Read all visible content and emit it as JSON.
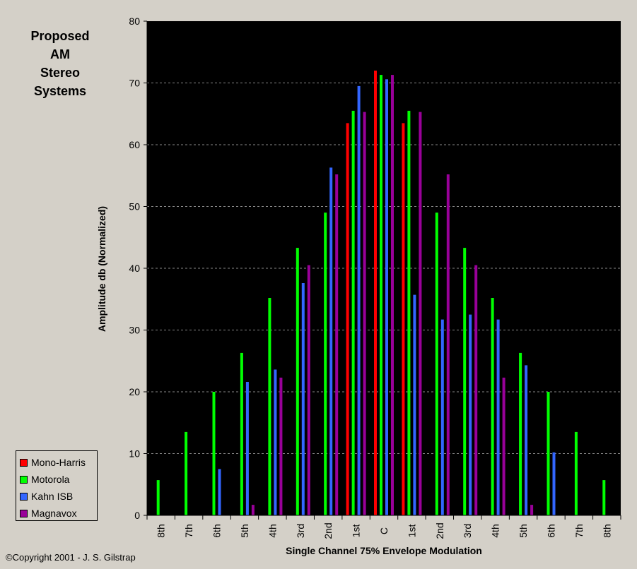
{
  "title_lines": [
    "Proposed",
    "AM",
    "Stereo",
    "Systems"
  ],
  "copyright": "©Copyright 2001 - J. S. Gilstrap",
  "chart_data": {
    "type": "bar",
    "xlabel": "Single Channel 75% Envelope Modulation",
    "ylabel": "Amplitude db (Normalized)",
    "ylim": [
      0,
      80
    ],
    "yticks": [
      0,
      10,
      20,
      30,
      40,
      50,
      60,
      70,
      80
    ],
    "grid": "horizontal dashed",
    "legend_position": "bottom-left",
    "background_color": "#000000",
    "categories": [
      "8th",
      "7th",
      "6th",
      "5th",
      "4th",
      "3rd",
      "2nd",
      "1st",
      "C",
      "1st",
      "2nd",
      "3rd",
      "4th",
      "5th",
      "6th",
      "7th",
      "8th"
    ],
    "series": [
      {
        "name": "Mono-Harris",
        "color": "#ff0000",
        "values": [
          0,
          0,
          0,
          0,
          0,
          0,
          0,
          63.5,
          72,
          63.5,
          0,
          0,
          0,
          0,
          0,
          0,
          0
        ]
      },
      {
        "name": "Motorola",
        "color": "#00ff00",
        "values": [
          5.7,
          13.5,
          20,
          26.3,
          35.2,
          43.3,
          49,
          65.5,
          71.3,
          65.5,
          49,
          43.3,
          35.2,
          26.3,
          20,
          13.5,
          5.7
        ]
      },
      {
        "name": "Kahn ISB",
        "color": "#3366ff",
        "values": [
          0,
          0,
          7.5,
          21.6,
          23.6,
          37.6,
          56.3,
          69.5,
          70.6,
          35.7,
          31.7,
          32.5,
          31.7,
          24.3,
          10.2,
          0,
          0
        ]
      },
      {
        "name": "Magnavox",
        "color": "#990099",
        "values": [
          0,
          0,
          0,
          1.7,
          22.3,
          40.5,
          55.2,
          65.3,
          71.3,
          65.3,
          55.2,
          40.5,
          22.3,
          1.7,
          0,
          0,
          0
        ]
      }
    ]
  }
}
